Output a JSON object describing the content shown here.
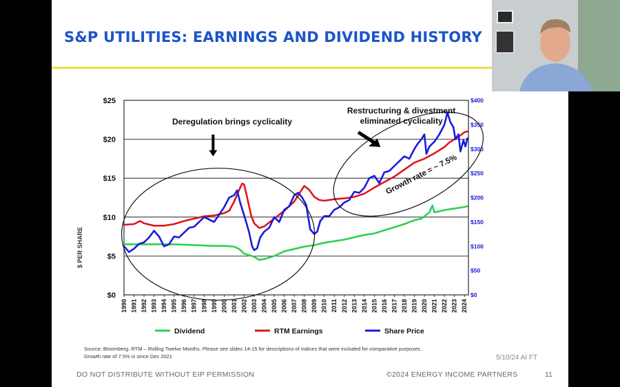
{
  "slide": {
    "title": "S&P UTILITIES: EARNINGS AND DIVIDEND HISTORY",
    "source_line1": "Source: Bloomberg.  RTM – Rolling Twelve Months. Please see slides 14-15 for descriptions of indices that were included for comparative purposes.",
    "source_line2": "Growth rate of 7.5% is since Dec 2021",
    "stamp": "5/10/24 AI FT",
    "footer_left": "DO NOT DISTRIBUTE WITHOUT EIP PERMISSION",
    "footer_right": "©2024 ENERGY INCOME PARTNERS",
    "page_number": "11"
  },
  "colors": {
    "title": "#1b55c8",
    "title_rule": "#f2dc45",
    "dividend": "#2fcf52",
    "earnings": "#e0141e",
    "share_price": "#1a1adb",
    "right_axis": "#1a1adb"
  },
  "chart_data": {
    "type": "line",
    "title": "",
    "ylabel": "$ PER SHARE",
    "y2label": "",
    "xlim": [
      1990,
      2024.4
    ],
    "ylim": [
      0,
      25
    ],
    "y2lim": [
      0,
      400
    ],
    "yticks": [
      "$0",
      "$5",
      "$10",
      "$15",
      "$20",
      "$25"
    ],
    "y2ticks": [
      "$0",
      "$50",
      "$100",
      "$150",
      "$200",
      "$250",
      "$300",
      "$350",
      "$400"
    ],
    "xticks": [
      "1990",
      "1991",
      "1992",
      "1993",
      "1994",
      "1995",
      "1996",
      "1997",
      "1998",
      "1999",
      "2000",
      "2001",
      "2002",
      "2003",
      "2004",
      "2005",
      "2006",
      "2007",
      "2008",
      "2009",
      "2010",
      "2011",
      "2012",
      "2013",
      "2014",
      "2015",
      "2016",
      "2017",
      "2018",
      "2019",
      "2020",
      "2021",
      "2022",
      "2023",
      "2024"
    ],
    "grid": "horizontal",
    "legend_position": "bottom",
    "series": [
      {
        "name": "Dividend",
        "axis": "left",
        "x": [
          1990,
          1991,
          1993,
          1995,
          1997,
          1999,
          2000,
          2001,
          2001.5,
          2002,
          2002.5,
          2003,
          2003.5,
          2004,
          2005,
          2006,
          2007,
          2008,
          2009,
          2010,
          2011,
          2012,
          2013,
          2014,
          2015,
          2016,
          2017,
          2018,
          2019,
          2019.7,
          2020,
          2020.5,
          2020.8,
          2021,
          2022,
          2023,
          2024,
          2024.3
        ],
        "y": [
          6.5,
          6.5,
          6.5,
          6.5,
          6.4,
          6.3,
          6.3,
          6.2,
          5.9,
          5.3,
          5.1,
          4.9,
          4.5,
          4.6,
          5.0,
          5.6,
          5.9,
          6.2,
          6.4,
          6.7,
          6.9,
          7.1,
          7.4,
          7.7,
          7.9,
          8.3,
          8.7,
          9.1,
          9.6,
          9.8,
          10.1,
          10.6,
          11.5,
          10.6,
          10.9,
          11.1,
          11.3,
          11.4
        ]
      },
      {
        "name": "RTM Earnings",
        "axis": "left",
        "x": [
          1990,
          1991,
          1991.6,
          1992,
          1993,
          1994,
          1995,
          1996,
          1997,
          1998,
          1999,
          2000,
          2000.5,
          2001,
          2001.5,
          2001.8,
          2002,
          2002.3,
          2002.7,
          2003,
          2003.5,
          2004,
          2005,
          2006,
          2007,
          2007.6,
          2008,
          2008.5,
          2009,
          2009.5,
          2010,
          2011,
          2012,
          2013,
          2014,
          2015,
          2016,
          2017,
          2018,
          2019,
          2020,
          2021,
          2022,
          2022.5,
          2023,
          2023.5,
          2024,
          2024.3
        ],
        "y": [
          9.0,
          9.1,
          9.5,
          9.2,
          8.9,
          8.9,
          9.1,
          9.5,
          9.8,
          10.1,
          10.2,
          10.5,
          10.8,
          12.0,
          13.5,
          14.3,
          14.2,
          12.5,
          10.2,
          9.2,
          8.6,
          8.8,
          9.8,
          10.8,
          12.0,
          13.2,
          14.0,
          13.5,
          12.6,
          12.2,
          12.1,
          12.3,
          12.4,
          12.6,
          13.0,
          13.8,
          14.5,
          15.2,
          16.1,
          17.0,
          17.5,
          18.2,
          19.0,
          19.6,
          20.0,
          20.4,
          20.9,
          21.0
        ]
      },
      {
        "name": "Share Price",
        "axis": "right",
        "x": [
          1990,
          1990.5,
          1991,
          1991.5,
          1992,
          1992.5,
          1993,
          1993.5,
          1994,
          1994.5,
          1995,
          1995.5,
          1996,
          1996.5,
          1997,
          1997.5,
          1998,
          1998.5,
          1999,
          1999.5,
          2000,
          2000.5,
          2001,
          2001.3,
          2001.6,
          2001.9,
          2002.2,
          2002.5,
          2002.8,
          2003,
          2003.3,
          2003.6,
          2004,
          2004.5,
          2005,
          2005.5,
          2006,
          2006.5,
          2007,
          2007.4,
          2007.8,
          2008.2,
          2008.6,
          2009,
          2009.3,
          2009.6,
          2010,
          2010.5,
          2011,
          2011.5,
          2012,
          2012.5,
          2013,
          2013.5,
          2014,
          2014.5,
          2015,
          2015.5,
          2016,
          2016.5,
          2017,
          2017.5,
          2018,
          2018.5,
          2019,
          2019.3,
          2019.7,
          2020,
          2020.2,
          2020.5,
          2021,
          2021.5,
          2022,
          2022.3,
          2022.6,
          2022.9,
          2023.1,
          2023.4,
          2023.6,
          2023.9,
          2024.1,
          2024.3
        ],
        "y": [
          100,
          88,
          95,
          105,
          108,
          118,
          132,
          120,
          100,
          104,
          120,
          118,
          128,
          138,
          140,
          150,
          160,
          155,
          150,
          165,
          180,
          200,
          205,
          215,
          190,
          170,
          150,
          128,
          100,
          92,
          96,
          118,
          130,
          138,
          160,
          150,
          175,
          182,
          205,
          210,
          200,
          185,
          135,
          125,
          130,
          152,
          162,
          162,
          175,
          180,
          190,
          195,
          212,
          210,
          220,
          240,
          245,
          230,
          252,
          255,
          265,
          275,
          285,
          280,
          300,
          310,
          320,
          330,
          290,
          305,
          315,
          330,
          350,
          375,
          355,
          345,
          320,
          330,
          295,
          318,
          305,
          322
        ]
      }
    ],
    "annotations": [
      {
        "text": "Deregulation brings cyclicality"
      },
      {
        "text_lines": [
          "Restructuring & divestment",
          "eliminated cyclicality"
        ]
      },
      {
        "text": "Growth rate = ~ 7.5%"
      }
    ]
  }
}
